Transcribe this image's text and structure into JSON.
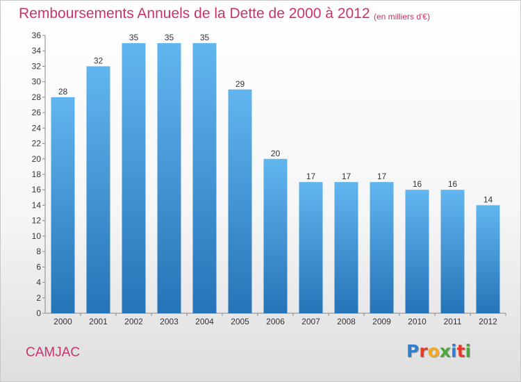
{
  "title": "Remboursements Annuels de la Dette de 2000 à 2012",
  "subtitle": "(en milliers d'€)",
  "commune": "CAMJAC",
  "logo": {
    "letters": [
      "P",
      "r",
      "o",
      "x",
      "i",
      "t",
      "i"
    ],
    "colors": [
      "#2f7fd0",
      "#e8392b",
      "#f5a81c",
      "#4aa53b",
      "#2f7fd0",
      "#e8392b",
      "#4aa53b"
    ]
  },
  "colors": {
    "bar_top": "#62b6ef",
    "bar_bottom": "#2574b8",
    "title": "#c9336b"
  },
  "chart_data": {
    "type": "bar",
    "categories": [
      "2000",
      "2001",
      "2002",
      "2003",
      "2004",
      "2005",
      "2006",
      "2007",
      "2008",
      "2009",
      "2010",
      "2011",
      "2012"
    ],
    "values": [
      28,
      32,
      35,
      35,
      35,
      29,
      20,
      17,
      17,
      17,
      16,
      16,
      14
    ],
    "ylim": [
      0,
      36
    ],
    "yticks": [
      0,
      2,
      4,
      6,
      8,
      10,
      12,
      14,
      16,
      18,
      20,
      22,
      24,
      26,
      28,
      30,
      32,
      34,
      36
    ],
    "grid": false,
    "xlabel": "",
    "ylabel": ""
  }
}
